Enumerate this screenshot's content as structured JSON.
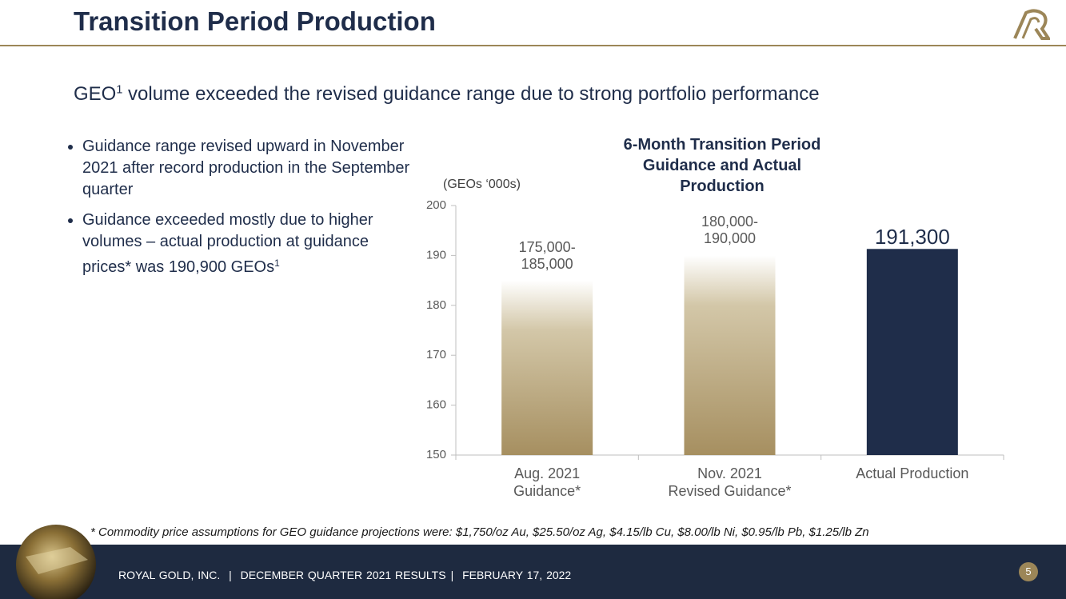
{
  "header": {
    "title": "Transition Period Production"
  },
  "headline": {
    "text": "GEO",
    "superscript": "1",
    "rest": " volume exceeded the revised guidance range due to strong portfolio performance"
  },
  "bullets": [
    {
      "text": "Guidance range revised upward in November 2021 after record production in the September quarter"
    },
    {
      "text": "Guidance exceeded mostly due to higher volumes – actual production at guidance prices* was 190,900 GEOs",
      "superscript": "1"
    }
  ],
  "chart_data": {
    "type": "bar",
    "title": "6-Month Transition Period Guidance and Actual Production",
    "y_axis_label": "(GEOs ‘000s)",
    "categories": [
      [
        "Aug. 2021",
        "Guidance*"
      ],
      [
        "Nov. 2021",
        "Revised Guidance*"
      ],
      [
        "Actual Production"
      ]
    ],
    "values": [
      185,
      190,
      191.3
    ],
    "range_low": [
      175,
      180,
      null
    ],
    "value_labels": [
      "175,000-185,000",
      "180,000-190,000",
      "191,300"
    ],
    "colors": [
      "#a68f60",
      "#a68f60",
      "#1f2d4a"
    ],
    "ylim": [
      150,
      200
    ],
    "yticks": [
      150,
      160,
      170,
      180,
      190,
      200
    ]
  },
  "footnote": "* Commodity price assumptions for GEO guidance projections were: $1,750/oz Au, $25.50/oz Ag, $4.15/lb Cu, $8.00/lb Ni, $0.95/lb Pb, $1.25/lb Zn",
  "footer": {
    "company": "ROYAL GOLD, INC.",
    "separator": "|",
    "event": "DECEMBER QUARTER 2021 RESULTS",
    "date": "FEBRUARY 17, 2022",
    "page": "5"
  }
}
